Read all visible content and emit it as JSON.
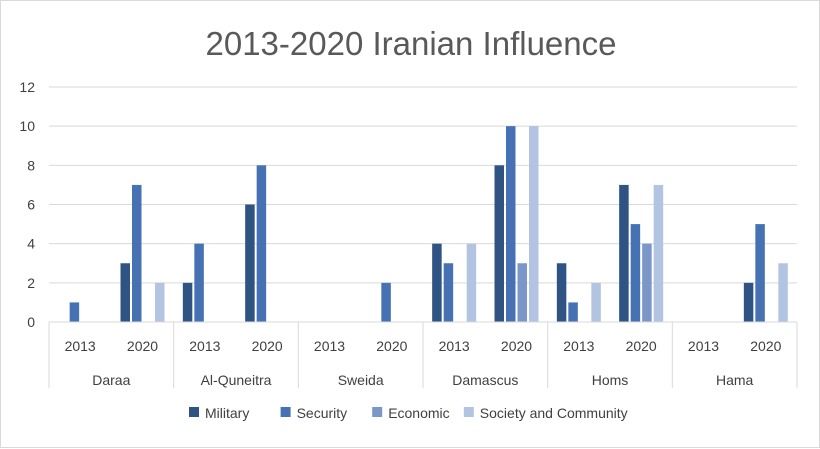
{
  "chart_data": {
    "type": "bar",
    "title": "2013-2020 Iranian Influence",
    "groups": [
      "Daraa",
      "Al-Quneitra",
      "Sweida",
      "Damascus",
      "Homs",
      "Hama"
    ],
    "years": [
      "2013",
      "2020"
    ],
    "ylim": [
      0,
      12
    ],
    "yticks": [
      0,
      2,
      4,
      6,
      8,
      10,
      12
    ],
    "grid": true,
    "legend_position": "bottom",
    "series": [
      {
        "name": "Military",
        "color": "#2f5483",
        "values": [
          [
            0,
            3
          ],
          [
            2,
            6
          ],
          [
            0,
            0
          ],
          [
            4,
            8
          ],
          [
            3,
            7
          ],
          [
            0,
            2
          ]
        ]
      },
      {
        "name": "Security",
        "color": "#4672b4",
        "values": [
          [
            1,
            7
          ],
          [
            4,
            8
          ],
          [
            0,
            2
          ],
          [
            3,
            10
          ],
          [
            1,
            5
          ],
          [
            0,
            5
          ]
        ]
      },
      {
        "name": "Economic",
        "color": "#7b97c8",
        "values": [
          [
            0,
            0
          ],
          [
            0,
            0
          ],
          [
            0,
            0
          ],
          [
            0,
            3
          ],
          [
            0,
            4
          ],
          [
            0,
            0
          ]
        ]
      },
      {
        "name": "Society and Community",
        "color": "#b3c3e2",
        "values": [
          [
            0,
            2
          ],
          [
            0,
            0
          ],
          [
            0,
            0
          ],
          [
            4,
            10
          ],
          [
            2,
            7
          ],
          [
            0,
            3
          ]
        ]
      }
    ]
  }
}
